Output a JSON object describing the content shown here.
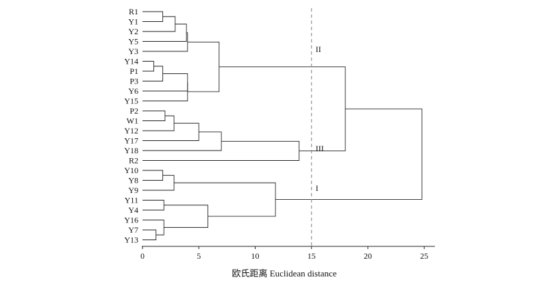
{
  "chart_data": {
    "type": "dendrogram",
    "orientation": "horizontal",
    "leaves": [
      "R1",
      "Y1",
      "Y2",
      "Y5",
      "Y3",
      "Y14",
      "P1",
      "P3",
      "Y6",
      "Y15",
      "P2",
      "W1",
      "Y12",
      "Y17",
      "Y18",
      "R2",
      "Y10",
      "Y8",
      "Y9",
      "Y11",
      "Y4",
      "Y16",
      "Y7",
      "Y13"
    ],
    "merges": [
      {
        "a": "R1",
        "b": "Y1",
        "height": 1.8
      },
      {
        "a": 0,
        "b": "Y2",
        "height": 2.9
      },
      {
        "a": 1,
        "b": "Y5",
        "height": 3.9
      },
      {
        "a": 2,
        "b": "Y3",
        "height": 4.0
      },
      {
        "a": "Y14",
        "b": "P1",
        "height": 1.0
      },
      {
        "a": 4,
        "b": "P3",
        "height": 1.8
      },
      {
        "a": 5,
        "b": "Y6",
        "height": 4.0
      },
      {
        "a": 6,
        "b": "Y15",
        "height": 4.0
      },
      {
        "a": 3,
        "b": 7,
        "height": 6.8
      },
      {
        "a": "P2",
        "b": "W1",
        "height": 2.0
      },
      {
        "a": 9,
        "b": "Y12",
        "height": 2.8
      },
      {
        "a": 10,
        "b": "Y17",
        "height": 5.0
      },
      {
        "a": 11,
        "b": "Y18",
        "height": 7.0
      },
      {
        "a": 12,
        "b": "R2",
        "height": 13.9
      },
      {
        "a": "Y10",
        "b": "Y8",
        "height": 1.8
      },
      {
        "a": 14,
        "b": "Y9",
        "height": 2.8
      },
      {
        "a": "Y11",
        "b": "Y4",
        "height": 1.9
      },
      {
        "a": "Y7",
        "b": "Y13",
        "height": 1.2
      },
      {
        "a": "Y16",
        "b": 17,
        "height": 1.9
      },
      {
        "a": 16,
        "b": 18,
        "height": 5.8
      },
      {
        "a": 15,
        "b": 19,
        "height": 11.8
      },
      {
        "a": 8,
        "b": 13,
        "height": 18.0
      },
      {
        "a": 21,
        "b": 20,
        "height": 24.8
      }
    ],
    "cut_line": 15,
    "clusters": [
      {
        "label": "II",
        "x": 15,
        "leaf": "Y3"
      },
      {
        "label": "III",
        "x": 15,
        "leaf": "Y18"
      },
      {
        "label": "I",
        "x": 15,
        "leaf": "Y9"
      }
    ],
    "xlim": [
      0,
      26
    ],
    "xticks": [
      "0",
      "5",
      "10",
      "15",
      "20",
      "25"
    ],
    "xlabel": "欧氏距离 Euclidean distance",
    "grid": false
  }
}
